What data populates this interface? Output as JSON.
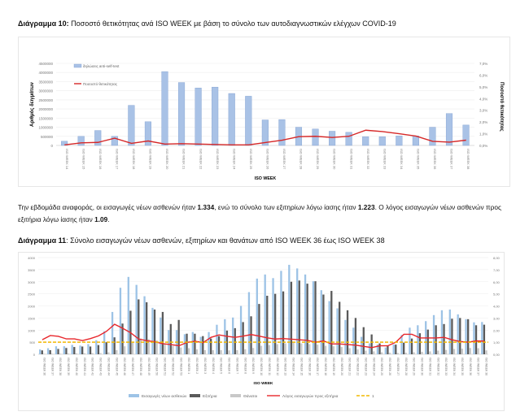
{
  "chart10_title": {
    "label": "Διάγραμμα 10:",
    "text": " Ποσοστό θετικότητας ανά ISO WEEK με βάση το σύνολο των αυτοδιαγνωστικών ελέγχων COVID-19"
  },
  "paragraph": {
    "p1": "Την εβδομάδα αναφοράς, οι εισαγωγές νέων ασθενών ήταν ",
    "v1": "1.334",
    "p2": ", ενώ το σύνολο των εξιτηρίων λόγω ίασης ήταν ",
    "v2": "1.223",
    "p3": ".  Ο λόγος εισαγωγών νέων ασθενών προς εξιτήρια λόγω ίασης ήταν ",
    "v3": "1.09",
    "p4": "."
  },
  "chart11_title": {
    "label": "Διάγραμμα 11",
    "text": ": Σύνολο εισαγωγών νέων ασθενών, εξιτηρίων και θανάτων από ISO WEEK 36 έως ISO WEEK 38"
  },
  "chart_data": [
    {
      "type": "bar",
      "xlabel": "ISO WEEK",
      "ylabel": "Αριθμός δειγμάτων",
      "y2label": "Ποσοστό θετικότητας",
      "ylim": [
        0,
        4500000
      ],
      "y2lim": [
        0,
        7
      ],
      "yticks": [
        "0",
        "500000",
        "1000000",
        "1500000",
        "2000000",
        "2500000",
        "3000000",
        "3500000",
        "4000000",
        "4500000"
      ],
      "y2ticks": [
        "0,0%",
        "1,0%",
        "2,0%",
        "3,0%",
        "4,0%",
        "5,0%",
        "6,0%",
        "7,0%"
      ],
      "legend_position": "top-left",
      "categories": [
        "ISO WEEK 14",
        "ISO WEEK 15",
        "ISO WEEK 16",
        "ISO WEEK 17",
        "ISO WEEK 18",
        "ISO WEEK 19",
        "ISO WEEK 20",
        "ISO WEEK 21",
        "ISO WEEK 22",
        "ISO WEEK 23",
        "ISO WEEK 24",
        "ISO WEEK 25",
        "ISO WEEK 26",
        "ISO WEEK 27",
        "ISO WEEK 28",
        "ISO WEEK 29",
        "ISO WEEK 30",
        "ISO WEEK 31",
        "ISO WEEK 32",
        "ISO WEEK 33",
        "ISO WEEK 34",
        "ISO WEEK 35",
        "ISO WEEK 36",
        "ISO WEEK 37",
        "ISO WEEK 38"
      ],
      "series": [
        {
          "name": "δηλώσεις anti-self-test",
          "kind": "bar",
          "axis": "left",
          "color": "#a9c2e6",
          "values": [
            230000,
            500000,
            820000,
            500000,
            2200000,
            1300000,
            4050000,
            3450000,
            3150000,
            3200000,
            2850000,
            2700000,
            1400000,
            1420000,
            1000000,
            900000,
            780000,
            720000,
            480000,
            480000,
            520000,
            520000,
            1000000,
            1750000,
            1120000
          ]
        },
        {
          "name": "Ποσοστό θετικότητας",
          "kind": "line",
          "axis": "right",
          "color": "#d62828",
          "values": [
            0.05,
            0.22,
            0.26,
            0.62,
            0.18,
            0.38,
            0.12,
            0.15,
            0.12,
            0.08,
            0.05,
            0.05,
            0.25,
            0.45,
            0.75,
            0.78,
            0.68,
            0.78,
            1.3,
            1.18,
            1.0,
            0.8,
            0.35,
            0.28,
            0.45
          ]
        }
      ]
    },
    {
      "type": "bar",
      "xlabel": "ISO WEEK",
      "ylim": [
        0,
        4000
      ],
      "y2lim": [
        0,
        8
      ],
      "yticks": [
        "0",
        "500",
        "1000",
        "1500",
        "2000",
        "2500",
        "3000",
        "3500",
        "4000"
      ],
      "y2ticks": [
        "0,00",
        "1,00",
        "2,00",
        "3,00",
        "4,00",
        "5,00",
        "6,00",
        "7,00",
        "8,00"
      ],
      "legend_position": "bottom",
      "categories": [
        "36",
        "37",
        "38",
        "39",
        "40",
        "41",
        "42",
        "43",
        "44",
        "45",
        "46",
        "47",
        "48",
        "49",
        "50",
        "51",
        "52",
        "53",
        "1",
        "2",
        "3",
        "4",
        "5",
        "6",
        "7",
        "8",
        "9",
        "10",
        "11",
        "12",
        "13",
        "14",
        "15",
        "16",
        "17",
        "18",
        "19",
        "20",
        "21",
        "22",
        "23",
        "24",
        "25",
        "26",
        "27",
        "28",
        "29",
        "30",
        "31",
        "32",
        "33",
        "34",
        "35",
        "36",
        "37",
        "38"
      ],
      "category_prefix": "ISO WEEK ",
      "series": [
        {
          "name": "Εισαγωγές νέων ασθενών",
          "kind": "bar",
          "axis": "left",
          "color": "#9dc3e6",
          "values": [
            200,
            250,
            330,
            330,
            390,
            360,
            420,
            580,
            950,
            1750,
            2750,
            3200,
            2870,
            2400,
            1920,
            1520,
            1000,
            1000,
            830,
            920,
            720,
            920,
            1220,
            1450,
            1520,
            2000,
            2570,
            3130,
            3300,
            3150,
            3450,
            3700,
            3550,
            3300,
            3020,
            2650,
            2200,
            1900,
            1420,
            1100,
            720,
            450,
            400,
            280,
            400,
            800,
            1100,
            1200,
            1370,
            1620,
            1820,
            1850,
            1650,
            1450,
            1320,
            1334
          ]
        },
        {
          "name": "Εξιτήρια",
          "kind": "bar",
          "axis": "left",
          "color": "#5a5a5a",
          "values": [
            160,
            170,
            220,
            260,
            300,
            320,
            320,
            380,
            500,
            700,
            1270,
            1800,
            2270,
            2150,
            1850,
            1750,
            1250,
            1420,
            850,
            850,
            750,
            650,
            750,
            980,
            1080,
            1330,
            1570,
            2080,
            2420,
            2500,
            2600,
            3000,
            3050,
            2920,
            3020,
            2470,
            2620,
            2170,
            1820,
            1500,
            1120,
            820,
            450,
            370,
            400,
            480,
            650,
            870,
            1020,
            1200,
            1250,
            1470,
            1500,
            1450,
            1200,
            1223
          ]
        },
        {
          "name": "Θάνατοι",
          "kind": "bar",
          "axis": "left",
          "color": "#c8c8c8",
          "values": [
            20,
            20,
            25,
            30,
            35,
            40,
            45,
            50,
            80,
            170,
            330,
            480,
            650,
            620,
            570,
            450,
            350,
            280,
            250,
            200,
            170,
            170,
            170,
            160,
            170,
            210,
            260,
            350,
            380,
            420,
            450,
            480,
            450,
            420,
            400,
            350,
            330,
            300,
            250,
            200,
            150,
            120,
            80,
            60,
            50,
            60,
            80,
            100,
            120,
            150,
            180,
            220,
            230,
            260,
            250,
            160
          ]
        },
        {
          "name": "Λόγος εισαγωγών προς εξιτήρια",
          "kind": "line",
          "axis": "right",
          "color": "#e8262b",
          "values": [
            1.2,
            1.55,
            1.48,
            1.27,
            1.27,
            1.13,
            1.3,
            1.52,
            1.9,
            2.48,
            2.15,
            1.78,
            1.26,
            1.12,
            1.04,
            0.87,
            0.8,
            0.7,
            0.98,
            1.08,
            0.96,
            1.4,
            1.6,
            1.48,
            1.4,
            1.5,
            1.63,
            1.5,
            1.36,
            1.26,
            1.3,
            1.25,
            1.2,
            1.15,
            1.0,
            1.1,
            0.85,
            0.85,
            0.8,
            0.75,
            0.65,
            0.55,
            0.7,
            0.7,
            1.0,
            1.65,
            1.65,
            1.35,
            1.35,
            1.35,
            1.4,
            1.2,
            1.05,
            1.0,
            1.1,
            1.09
          ]
        },
        {
          "name": "1",
          "kind": "dashed",
          "axis": "right",
          "color": "#f2b800",
          "value": 1
        }
      ]
    }
  ]
}
